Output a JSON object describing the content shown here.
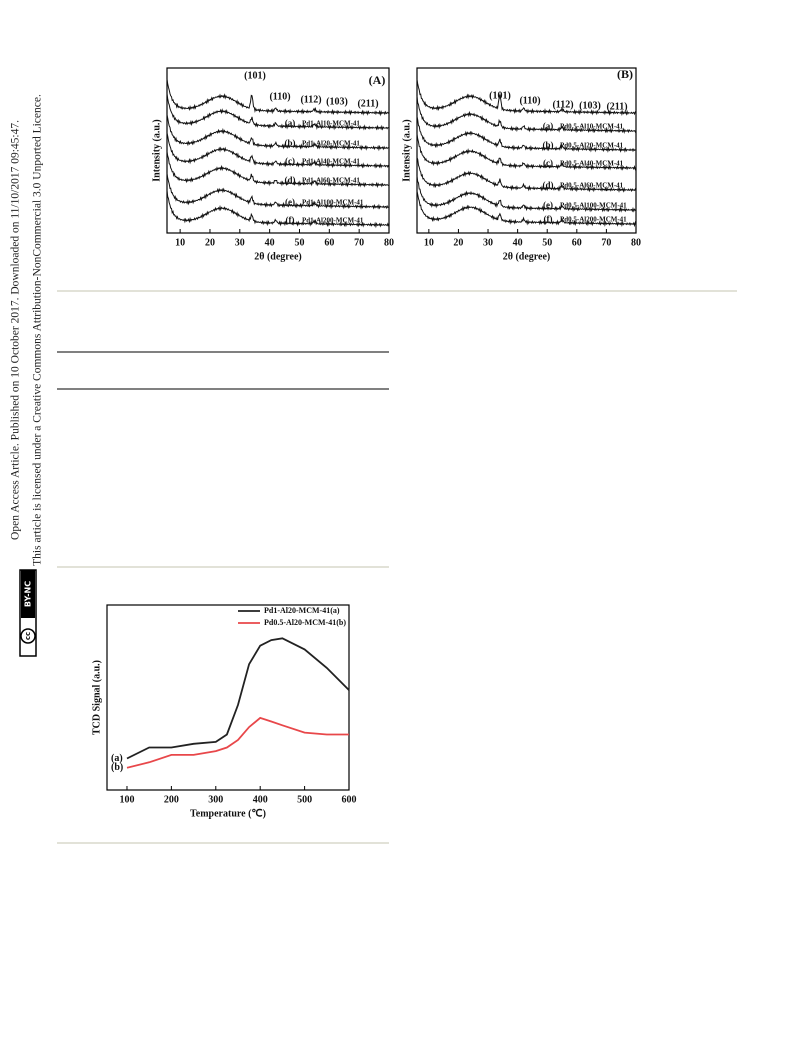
{
  "side_note": {
    "line1": "Open Access Article. Published on 10 October 2017. Downloaded on 11/10/2017 09:45:47.",
    "line2": "This article is licensed under a Creative Commons Attribution-NonCommercial 3.0 Unported Licence."
  },
  "license_badge": {
    "cc": "cc",
    "terms": "BY-NC"
  },
  "chart_data": [
    {
      "type": "xrd",
      "letter": "(A)",
      "ylabel": "Intensity (a.u.)",
      "xlabel": "2θ (degree)",
      "xlim": [
        5.6,
        80
      ],
      "xticks": [
        10,
        20,
        30,
        40,
        50,
        60,
        70,
        80
      ],
      "peaks": [
        "(101)",
        "(110)",
        "(112)",
        "(103)",
        "(211)"
      ],
      "samples": [
        {
          "tag": "(a)",
          "name": "Pd1-Al10-MCM-41"
        },
        {
          "tag": "(b)",
          "name": "Pd1-Al20-MCM-41"
        },
        {
          "tag": "(c)",
          "name": "Pd1-Al40-MCM-41"
        },
        {
          "tag": "(d)",
          "name": "Pd1-Al60-MCM-41"
        },
        {
          "tag": "(e)",
          "name": "Pd1-Al100-MCM-41"
        },
        {
          "tag": "(f)",
          "name": "Pd1-Al200-MCM-41"
        }
      ]
    },
    {
      "type": "xrd",
      "letter": "(B)",
      "ylabel": "Intensity (a.u.)",
      "xlabel": "2θ (degree)",
      "xlim": [
        6,
        80
      ],
      "xticks": [
        10,
        20,
        30,
        40,
        50,
        60,
        70,
        80
      ],
      "peaks": [
        "(101)",
        "(110)",
        "(112)",
        "(103)",
        "(211)"
      ],
      "samples": [
        {
          "tag": "(a)",
          "name": "Pd0.5-Al10-MCM-41"
        },
        {
          "tag": "(b)",
          "name": "Pd0.5-Al20-MCM-41"
        },
        {
          "tag": "(c)",
          "name": "Pd0.5-Al40-MCM-41"
        },
        {
          "tag": "(d)",
          "name": "Pd0.5-Al60-MCM-41"
        },
        {
          "tag": "(e)",
          "name": "Pd0.5-Al100-MCM-41"
        },
        {
          "tag": "(f)",
          "name": "Pd0.5-Al200-MCM-41"
        }
      ]
    },
    {
      "type": "line",
      "ylabel": "TCD Signal (a.u.)",
      "xlabel": "Temperature (℃)",
      "xlim": [
        55,
        600
      ],
      "xticks": [
        100,
        200,
        300,
        400,
        500,
        600
      ],
      "ylim": [
        0,
        100
      ],
      "x": [
        100,
        150,
        200,
        250,
        300,
        325,
        350,
        375,
        400,
        425,
        450,
        500,
        550,
        600
      ],
      "series": [
        {
          "name": "Pd1-Al20-MCM-41(a)",
          "tag": "(a)",
          "color": "#222222",
          "values": [
            17,
            23,
            23,
            25,
            26,
            30,
            46,
            68,
            78,
            81,
            82,
            76,
            66,
            54
          ]
        },
        {
          "name": "Pd0.5-Al20-MCM-41(b)",
          "tag": "(b)",
          "color": "#e8474a",
          "values": [
            12,
            15,
            19,
            19,
            21,
            23,
            27,
            34,
            39,
            37,
            35,
            31,
            30,
            30
          ]
        }
      ]
    }
  ]
}
